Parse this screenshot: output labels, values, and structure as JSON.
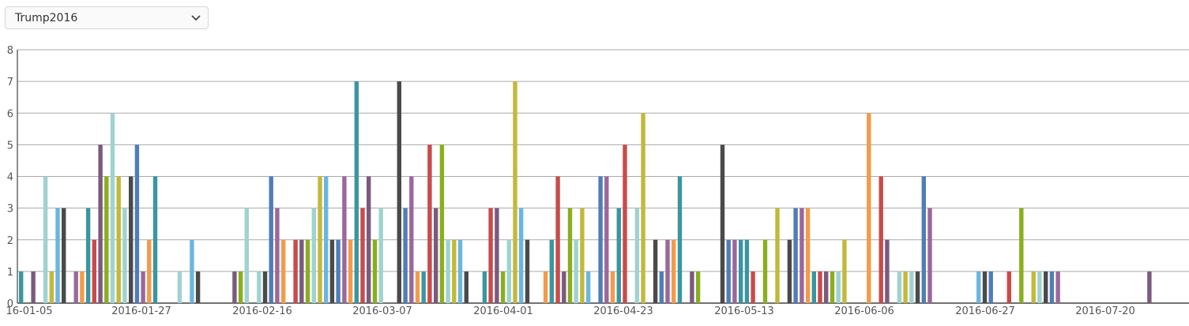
{
  "selector": {
    "value": "Trump2016"
  },
  "chart_data": {
    "type": "bar",
    "ylim": [
      0,
      8
    ],
    "y_ticks": [
      0,
      1,
      2,
      3,
      4,
      5,
      6,
      7,
      8
    ],
    "x_tick_labels": [
      "16-01-05",
      "2016-01-27",
      "2016-02-16",
      "2016-03-07",
      "2016-04-01",
      "2016-04-23",
      "2016-05-13",
      "2016-06-06",
      "2016-06-27",
      "2016-07-20"
    ],
    "grid": true,
    "palette": [
      "#3a96a0",
      "#7b5a7e",
      "#9fd3cf",
      "#c2b93b",
      "#6bb6e0",
      "#4a4a4a",
      "#9b679c",
      "#f29b4a",
      "#c84b4b",
      "#4f7db8",
      "#8aae1e"
    ],
    "bars": [
      {
        "x": 0,
        "v": 1,
        "c": 0
      },
      {
        "x": 2,
        "v": 1,
        "c": 1
      },
      {
        "x": 4,
        "v": 4,
        "c": 2
      },
      {
        "x": 5,
        "v": 1,
        "c": 3
      },
      {
        "x": 6,
        "v": 3,
        "c": 4
      },
      {
        "x": 7,
        "v": 3,
        "c": 5
      },
      {
        "x": 9,
        "v": 1,
        "c": 6
      },
      {
        "x": 10,
        "v": 1,
        "c": 7
      },
      {
        "x": 11,
        "v": 3,
        "c": 0
      },
      {
        "x": 12,
        "v": 2,
        "c": 8
      },
      {
        "x": 13,
        "v": 5,
        "c": 1
      },
      {
        "x": 14,
        "v": 4,
        "c": 10
      },
      {
        "x": 15,
        "v": 6,
        "c": 2
      },
      {
        "x": 16,
        "v": 4,
        "c": 3
      },
      {
        "x": 17,
        "v": 3,
        "c": 2
      },
      {
        "x": 18,
        "v": 4,
        "c": 5
      },
      {
        "x": 19,
        "v": 5,
        "c": 9
      },
      {
        "x": 20,
        "v": 1,
        "c": 6
      },
      {
        "x": 21,
        "v": 2,
        "c": 7
      },
      {
        "x": 22,
        "v": 4,
        "c": 0
      },
      {
        "x": 26,
        "v": 1,
        "c": 2
      },
      {
        "x": 28,
        "v": 2,
        "c": 4
      },
      {
        "x": 29,
        "v": 1,
        "c": 5
      },
      {
        "x": 35,
        "v": 1,
        "c": 1
      },
      {
        "x": 36,
        "v": 1,
        "c": 10
      },
      {
        "x": 37,
        "v": 3,
        "c": 2
      },
      {
        "x": 39,
        "v": 1,
        "c": 2
      },
      {
        "x": 40,
        "v": 1,
        "c": 5
      },
      {
        "x": 41,
        "v": 4,
        "c": 9
      },
      {
        "x": 42,
        "v": 3,
        "c": 6
      },
      {
        "x": 43,
        "v": 2,
        "c": 7
      },
      {
        "x": 45,
        "v": 2,
        "c": 8
      },
      {
        "x": 46,
        "v": 2,
        "c": 1
      },
      {
        "x": 47,
        "v": 2,
        "c": 10
      },
      {
        "x": 48,
        "v": 3,
        "c": 2
      },
      {
        "x": 49,
        "v": 4,
        "c": 3
      },
      {
        "x": 50,
        "v": 4,
        "c": 4
      },
      {
        "x": 51,
        "v": 2,
        "c": 5
      },
      {
        "x": 52,
        "v": 2,
        "c": 9
      },
      {
        "x": 53,
        "v": 4,
        "c": 6
      },
      {
        "x": 54,
        "v": 2,
        "c": 7
      },
      {
        "x": 55,
        "v": 7,
        "c": 0
      },
      {
        "x": 56,
        "v": 3,
        "c": 8
      },
      {
        "x": 57,
        "v": 4,
        "c": 1
      },
      {
        "x": 58,
        "v": 2,
        "c": 10
      },
      {
        "x": 59,
        "v": 3,
        "c": 2
      },
      {
        "x": 62,
        "v": 7,
        "c": 5
      },
      {
        "x": 63,
        "v": 3,
        "c": 9
      },
      {
        "x": 64,
        "v": 4,
        "c": 6
      },
      {
        "x": 65,
        "v": 1,
        "c": 7
      },
      {
        "x": 66,
        "v": 1,
        "c": 0
      },
      {
        "x": 67,
        "v": 5,
        "c": 8
      },
      {
        "x": 68,
        "v": 3,
        "c": 1
      },
      {
        "x": 69,
        "v": 5,
        "c": 10
      },
      {
        "x": 70,
        "v": 2,
        "c": 2
      },
      {
        "x": 71,
        "v": 2,
        "c": 3
      },
      {
        "x": 72,
        "v": 2,
        "c": 4
      },
      {
        "x": 73,
        "v": 1,
        "c": 5
      },
      {
        "x": 76,
        "v": 1,
        "c": 0
      },
      {
        "x": 77,
        "v": 3,
        "c": 8
      },
      {
        "x": 78,
        "v": 3,
        "c": 1
      },
      {
        "x": 79,
        "v": 1,
        "c": 10
      },
      {
        "x": 80,
        "v": 2,
        "c": 2
      },
      {
        "x": 81,
        "v": 7,
        "c": 3
      },
      {
        "x": 82,
        "v": 3,
        "c": 4
      },
      {
        "x": 83,
        "v": 2,
        "c": 5
      },
      {
        "x": 86,
        "v": 1,
        "c": 7
      },
      {
        "x": 87,
        "v": 2,
        "c": 0
      },
      {
        "x": 88,
        "v": 4,
        "c": 8
      },
      {
        "x": 89,
        "v": 1,
        "c": 1
      },
      {
        "x": 90,
        "v": 3,
        "c": 10
      },
      {
        "x": 91,
        "v": 2,
        "c": 2
      },
      {
        "x": 92,
        "v": 3,
        "c": 3
      },
      {
        "x": 93,
        "v": 1,
        "c": 4
      },
      {
        "x": 95,
        "v": 4,
        "c": 9
      },
      {
        "x": 96,
        "v": 4,
        "c": 6
      },
      {
        "x": 97,
        "v": 1,
        "c": 7
      },
      {
        "x": 98,
        "v": 3,
        "c": 0
      },
      {
        "x": 99,
        "v": 5,
        "c": 8
      },
      {
        "x": 101,
        "v": 3,
        "c": 2
      },
      {
        "x": 102,
        "v": 6,
        "c": 3
      },
      {
        "x": 104,
        "v": 2,
        "c": 5
      },
      {
        "x": 105,
        "v": 1,
        "c": 9
      },
      {
        "x": 106,
        "v": 2,
        "c": 6
      },
      {
        "x": 107,
        "v": 2,
        "c": 7
      },
      {
        "x": 108,
        "v": 4,
        "c": 0
      },
      {
        "x": 110,
        "v": 1,
        "c": 1
      },
      {
        "x": 111,
        "v": 1,
        "c": 10
      },
      {
        "x": 115,
        "v": 5,
        "c": 5
      },
      {
        "x": 116,
        "v": 2,
        "c": 9
      },
      {
        "x": 117,
        "v": 2,
        "c": 6
      },
      {
        "x": 118,
        "v": 2,
        "c": 0
      },
      {
        "x": 119,
        "v": 2,
        "c": 0
      },
      {
        "x": 120,
        "v": 1,
        "c": 8
      },
      {
        "x": 122,
        "v": 2,
        "c": 10
      },
      {
        "x": 124,
        "v": 3,
        "c": 3
      },
      {
        "x": 126,
        "v": 2,
        "c": 5
      },
      {
        "x": 127,
        "v": 3,
        "c": 9
      },
      {
        "x": 128,
        "v": 3,
        "c": 6
      },
      {
        "x": 129,
        "v": 3,
        "c": 7
      },
      {
        "x": 130,
        "v": 1,
        "c": 0
      },
      {
        "x": 131,
        "v": 1,
        "c": 8
      },
      {
        "x": 132,
        "v": 1,
        "c": 1
      },
      {
        "x": 133,
        "v": 1,
        "c": 10
      },
      {
        "x": 134,
        "v": 1,
        "c": 2
      },
      {
        "x": 135,
        "v": 2,
        "c": 3
      },
      {
        "x": 139,
        "v": 6,
        "c": 7
      },
      {
        "x": 141,
        "v": 4,
        "c": 8
      },
      {
        "x": 142,
        "v": 2,
        "c": 1
      },
      {
        "x": 144,
        "v": 1,
        "c": 2
      },
      {
        "x": 145,
        "v": 1,
        "c": 3
      },
      {
        "x": 146,
        "v": 1,
        "c": 2
      },
      {
        "x": 147,
        "v": 1,
        "c": 5
      },
      {
        "x": 148,
        "v": 4,
        "c": 9
      },
      {
        "x": 149,
        "v": 3,
        "c": 6
      },
      {
        "x": 157,
        "v": 1,
        "c": 4
      },
      {
        "x": 158,
        "v": 1,
        "c": 5
      },
      {
        "x": 159,
        "v": 1,
        "c": 9
      },
      {
        "x": 162,
        "v": 1,
        "c": 8
      },
      {
        "x": 164,
        "v": 3,
        "c": 10
      },
      {
        "x": 166,
        "v": 1,
        "c": 3
      },
      {
        "x": 167,
        "v": 1,
        "c": 2
      },
      {
        "x": 168,
        "v": 1,
        "c": 5
      },
      {
        "x": 169,
        "v": 1,
        "c": 9
      },
      {
        "x": 170,
        "v": 1,
        "c": 6
      },
      {
        "x": 185,
        "v": 1,
        "c": 1
      }
    ]
  }
}
